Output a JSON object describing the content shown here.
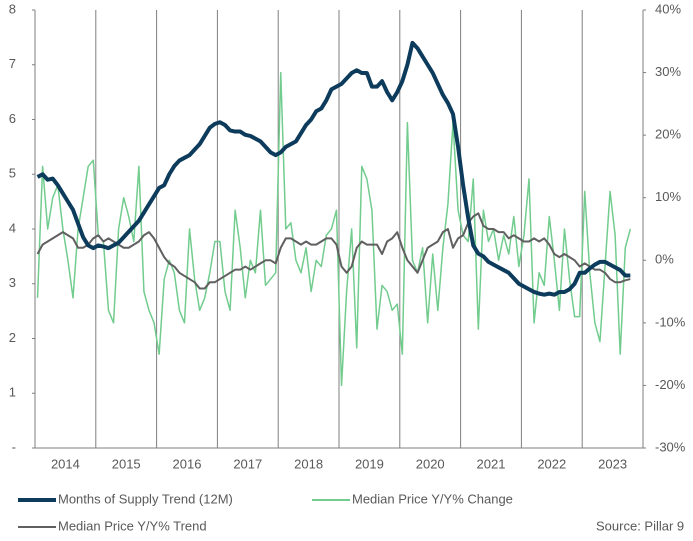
{
  "chart_data": {
    "type": "line",
    "categories": [
      null,
      null,
      null,
      null,
      null,
      "2014",
      null,
      null,
      null,
      null,
      null,
      null,
      null,
      null,
      null,
      null,
      null,
      "2015",
      null,
      null,
      null,
      null,
      null,
      null,
      null,
      null,
      null,
      null,
      null,
      "2016",
      null,
      null,
      null,
      null,
      null,
      null,
      null,
      null,
      null,
      null,
      null,
      "2017",
      null,
      null,
      null,
      null,
      null,
      null,
      null,
      null,
      null,
      null,
      null,
      "2018",
      null,
      null,
      null,
      null,
      null,
      null,
      null,
      null,
      null,
      null,
      null,
      "2019",
      null,
      null,
      null,
      null,
      null,
      null,
      null,
      null,
      null,
      null,
      null,
      "2020",
      null,
      null,
      null,
      null,
      null,
      null,
      null,
      null,
      null,
      null,
      null,
      "2021",
      null,
      null,
      null,
      null,
      null,
      null,
      null,
      null,
      null,
      null,
      null,
      "2022",
      null,
      null,
      null,
      null,
      null,
      null,
      null,
      null,
      null,
      null,
      null,
      "2023",
      null,
      null,
      null,
      null,
      null,
      null
    ],
    "series": [
      {
        "name": "Months of Supply Trend (12M)",
        "color": "#0d3b5c",
        "axis": "y",
        "values": [
          4.95,
          5.0,
          4.9,
          4.92,
          4.8,
          4.65,
          4.5,
          4.35,
          4.1,
          3.85,
          3.7,
          3.65,
          3.7,
          3.68,
          3.65,
          3.7,
          3.75,
          3.85,
          3.95,
          4.05,
          4.15,
          4.3,
          4.45,
          4.6,
          4.75,
          4.8,
          5.0,
          5.15,
          5.25,
          5.3,
          5.35,
          5.45,
          5.55,
          5.7,
          5.85,
          5.92,
          5.95,
          5.9,
          5.8,
          5.78,
          5.78,
          5.72,
          5.7,
          5.65,
          5.6,
          5.5,
          5.4,
          5.35,
          5.4,
          5.5,
          5.55,
          5.6,
          5.75,
          5.9,
          6.0,
          6.15,
          6.2,
          6.35,
          6.55,
          6.6,
          6.65,
          6.75,
          6.85,
          6.9,
          6.85,
          6.85,
          6.6,
          6.6,
          6.7,
          6.5,
          6.35,
          6.5,
          6.7,
          7.0,
          7.4,
          7.3,
          7.15,
          7.0,
          6.85,
          6.65,
          6.45,
          6.3,
          6.1,
          5.5,
          4.8,
          4.2,
          3.7,
          3.55,
          3.5,
          3.4,
          3.35,
          3.3,
          3.25,
          3.2,
          3.1,
          3.0,
          2.95,
          2.9,
          2.85,
          2.82,
          2.8,
          2.82,
          2.8,
          2.85,
          2.85,
          2.9,
          3.0,
          3.2,
          3.2,
          3.28,
          3.35,
          3.4,
          3.4,
          3.35,
          3.3,
          3.25,
          3.15,
          3.15,
          null,
          null
        ]
      },
      {
        "name": "Median Price Y/Y% Change",
        "color": "#72cc8e",
        "axis": "y2",
        "values": [
          -6,
          15,
          5,
          10,
          12,
          5,
          0,
          -6,
          5,
          10,
          15,
          16,
          4,
          3,
          -8,
          -10,
          5,
          10,
          7,
          3,
          15,
          -5,
          -8,
          -10,
          -15,
          -3,
          0,
          -2,
          -8,
          -10,
          5,
          -3,
          -8,
          -6,
          -2,
          3,
          3,
          -5,
          -8,
          8,
          2,
          -6,
          0,
          -2,
          8,
          -4,
          -3,
          -2,
          30,
          5,
          6,
          0,
          -2,
          2,
          -5,
          0,
          -1,
          4,
          5,
          8,
          -20,
          -5,
          5,
          -14,
          15,
          13,
          8,
          -11,
          -4,
          -5,
          -8,
          -7,
          -15,
          22,
          0,
          -2,
          2,
          -10,
          1,
          -8,
          2,
          9,
          22,
          8,
          4,
          3,
          13,
          -11,
          8,
          3,
          5,
          0,
          4,
          1,
          7,
          -1,
          4,
          13,
          -10,
          -2,
          -4,
          7,
          0,
          -8,
          5,
          -3,
          -9,
          -9,
          11,
          -2,
          -10,
          -13,
          -1,
          11,
          4,
          -15,
          2,
          5,
          null,
          null
        ]
      },
      {
        "name": "Median Price Y/Y% Trend",
        "color": "#5f605f",
        "axis": "y2",
        "values": [
          1,
          2.5,
          3,
          3.5,
          4,
          4.5,
          4,
          3.5,
          2,
          2,
          2.5,
          3.5,
          4,
          3,
          3.5,
          3,
          2.5,
          2,
          2,
          2.5,
          3,
          4,
          4.5,
          3.5,
          2,
          0.5,
          -0.5,
          -1,
          -2,
          -2.5,
          -3,
          -3.5,
          -4.5,
          -4.5,
          -3.5,
          -3.5,
          -3,
          -2.5,
          -2,
          -1.5,
          -1.5,
          -1,
          -1.5,
          -1,
          -0.5,
          0,
          0,
          -0.5,
          2,
          3.5,
          3.5,
          3,
          2.5,
          3,
          2.5,
          2.5,
          3,
          3.5,
          3.5,
          2.5,
          -1,
          -2,
          -1,
          2,
          3,
          2.5,
          2.5,
          2.5,
          1,
          3,
          3.5,
          4.5,
          2,
          0,
          -1,
          -2,
          0,
          2,
          2.5,
          3,
          4.5,
          5,
          2,
          3.5,
          4,
          6,
          7,
          7.5,
          5.5,
          5,
          5,
          4.5,
          4.5,
          3.5,
          4,
          3.5,
          3,
          3,
          3.5,
          3,
          3.5,
          2.5,
          1,
          0.5,
          1,
          0.5,
          0,
          -1,
          -0.5,
          -1,
          -1.5,
          -1.5,
          -2,
          -3,
          -3.5,
          -3.5,
          -3.2,
          -3,
          null,
          null
        ]
      }
    ],
    "ylim": [
      0,
      8
    ],
    "yticks": [
      {
        "value": 0,
        "label": "-"
      },
      1,
      2,
      3,
      4,
      5,
      6,
      7,
      8
    ],
    "y2lim": [
      -30,
      40
    ],
    "y2ticks": [
      {
        "value": -30,
        "label": "-30%"
      },
      {
        "value": -20,
        "label": "-20%"
      },
      {
        "value": -10,
        "label": "-10%"
      },
      {
        "value": 0,
        "label": "0%"
      },
      {
        "value": 10,
        "label": "10%"
      },
      {
        "value": 20,
        "label": "20%"
      },
      {
        "value": 30,
        "label": "30%"
      },
      {
        "value": 40,
        "label": "40%"
      }
    ],
    "source": "Source: Pillar 9"
  }
}
